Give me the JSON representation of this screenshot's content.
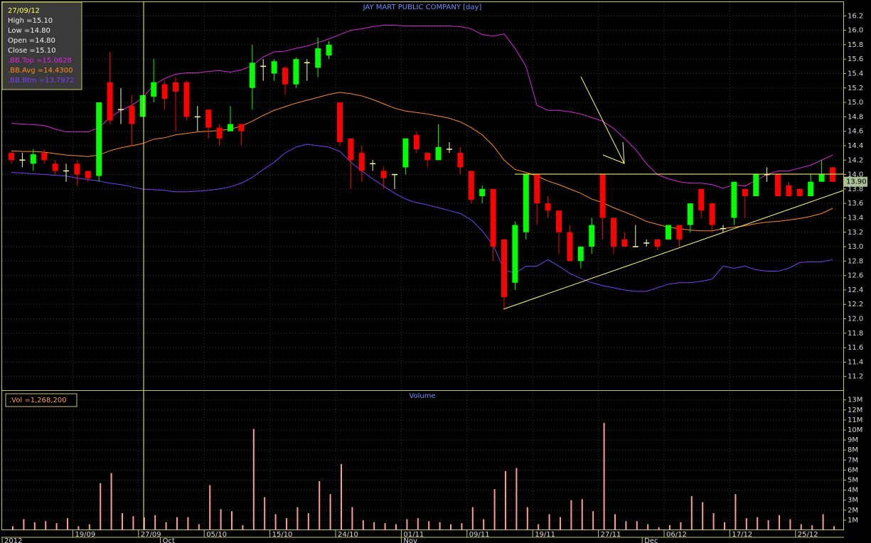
{
  "chart_data": [
    {
      "type": "candlestick",
      "title": "JAY MART PUBLIC COMPANY [day]",
      "open": [
        14.3,
        14.2,
        14.15,
        14.3,
        14.15,
        14.05,
        14.15,
        14.05,
        13.98,
        15.28,
        14.9,
        14.95,
        14.8,
        15.08,
        15.25,
        15.28,
        15.28,
        14.8,
        14.9,
        14.65,
        14.6,
        14.7,
        15.2,
        15.5,
        15.4,
        15.48,
        15.25,
        15.55,
        15.48,
        15.65,
        15.0,
        14.5,
        14.3,
        14.15,
        14.05,
        14.0,
        14.1,
        14.55,
        14.3,
        14.2,
        14.35,
        14.3,
        14.05,
        13.7,
        13.8,
        13.1,
        12.5,
        13.2,
        14.0,
        13.6,
        13.5,
        13.2,
        12.8,
        13.0,
        14.0,
        13.4,
        13.1,
        13.0,
        13.05,
        13.1,
        13.1,
        13.3,
        13.3,
        13.8,
        13.6,
        13.25,
        13.4,
        13.8,
        13.7,
        14.0,
        14.0,
        13.85,
        13.8,
        13.7,
        13.9,
        14.1
      ],
      "high": [
        14.32,
        14.3,
        14.35,
        14.35,
        14.2,
        14.15,
        14.2,
        14.05,
        15.0,
        15.7,
        15.2,
        15.1,
        15.1,
        15.6,
        15.3,
        15.35,
        15.3,
        14.95,
        14.9,
        14.7,
        14.95,
        14.7,
        15.8,
        15.6,
        15.6,
        15.5,
        15.62,
        15.6,
        15.9,
        15.85,
        15.0,
        14.5,
        14.4,
        14.2,
        14.1,
        14.0,
        14.5,
        14.6,
        14.3,
        14.7,
        14.45,
        14.38,
        14.05,
        13.85,
        13.8,
        13.1,
        13.35,
        14.0,
        14.0,
        13.7,
        13.5,
        13.3,
        13.0,
        13.4,
        14.0,
        13.4,
        13.2,
        13.3,
        13.1,
        13.1,
        13.3,
        13.3,
        13.6,
        13.8,
        13.6,
        13.3,
        13.9,
        13.8,
        14.0,
        14.1,
        14.0,
        13.9,
        13.8,
        14.0,
        14.2,
        14.1
      ],
      "low": [
        14.15,
        14.1,
        14.05,
        14.15,
        14.0,
        13.9,
        13.85,
        13.9,
        13.9,
        14.7,
        14.7,
        14.4,
        14.8,
        15.0,
        14.9,
        14.6,
        14.75,
        14.6,
        14.5,
        14.4,
        14.6,
        14.4,
        14.9,
        15.3,
        15.3,
        15.1,
        15.2,
        15.3,
        15.35,
        15.6,
        14.4,
        13.8,
        13.9,
        14.05,
        13.8,
        13.8,
        14.0,
        14.3,
        14.1,
        14.2,
        14.3,
        14.0,
        13.6,
        13.6,
        12.8,
        12.15,
        12.4,
        13.1,
        13.3,
        13.4,
        12.9,
        12.8,
        12.7,
        12.9,
        13.1,
        12.9,
        13.0,
        13.0,
        13.0,
        12.95,
        13.1,
        13.0,
        13.2,
        13.4,
        13.2,
        13.2,
        13.3,
        13.4,
        13.7,
        13.9,
        13.7,
        13.7,
        13.7,
        13.7,
        13.9,
        13.9
      ],
      "close": [
        14.2,
        14.2,
        14.28,
        14.2,
        14.05,
        14.05,
        14.0,
        13.95,
        15.0,
        14.75,
        14.9,
        14.7,
        15.1,
        15.28,
        15.05,
        15.15,
        14.8,
        14.8,
        14.65,
        14.5,
        14.7,
        14.6,
        15.55,
        15.5,
        15.57,
        15.25,
        15.6,
        15.55,
        15.75,
        15.8,
        14.45,
        14.2,
        14.05,
        14.15,
        13.95,
        14.0,
        14.5,
        14.35,
        14.2,
        14.38,
        14.35,
        14.1,
        13.65,
        13.8,
        13.0,
        12.3,
        13.3,
        14.0,
        13.6,
        13.5,
        13.2,
        12.8,
        13.0,
        13.3,
        13.4,
        13.0,
        13.0,
        13.0,
        13.05,
        13.0,
        13.3,
        13.1,
        13.6,
        13.5,
        13.3,
        13.25,
        13.9,
        13.7,
        14.0,
        14.0,
        13.7,
        13.7,
        13.7,
        13.9,
        14.0,
        13.9
      ],
      "last_label": "13.90",
      "up_color": "#00ff00",
      "down_color": "#ff0000",
      "flat_color": "#ffffa0",
      "series": [
        {
          "color": "#e020e0",
          "values": [
            14.71,
            14.7,
            14.69,
            14.68,
            14.63,
            14.59,
            14.59,
            14.59,
            14.65,
            14.79,
            14.89,
            14.96,
            15.0628,
            15.24,
            15.33,
            15.39,
            15.41,
            15.41,
            15.43,
            15.44,
            15.42,
            15.45,
            15.51,
            15.63,
            15.7,
            15.71,
            15.75,
            15.78,
            15.83,
            15.88,
            15.94,
            16.0,
            16.02,
            16.05,
            16.07,
            16.07,
            16.06,
            16.06,
            16.06,
            16.06,
            16.06,
            16.05,
            16.02,
            15.94,
            15.92,
            15.95,
            15.75,
            15.5,
            14.96,
            14.89,
            14.89,
            14.87,
            14.84,
            14.79,
            14.74,
            14.64,
            14.5,
            14.35,
            14.15,
            14.0,
            13.94,
            13.9,
            13.88,
            13.88,
            13.86,
            13.81,
            13.86,
            13.84,
            13.92,
            14.0,
            14.05,
            14.05,
            14.09,
            14.13,
            14.2,
            14.27
          ]
        },
        {
          "color": "#ff8c1a",
          "values": [
            14.33,
            14.32,
            14.32,
            14.31,
            14.29,
            14.27,
            14.26,
            14.25,
            14.27,
            14.33,
            14.37,
            14.4,
            14.43,
            14.49,
            14.51,
            14.55,
            14.57,
            14.59,
            14.6,
            14.61,
            14.63,
            14.67,
            14.74,
            14.82,
            14.89,
            14.94,
            14.99,
            15.03,
            15.07,
            15.11,
            15.14,
            15.12,
            15.09,
            15.04,
            14.98,
            14.92,
            14.88,
            14.86,
            14.84,
            14.81,
            14.78,
            14.73,
            14.65,
            14.55,
            14.4,
            14.2,
            14.07,
            14.03,
            13.98,
            13.91,
            13.86,
            13.8,
            13.74,
            13.66,
            13.61,
            13.54,
            13.48,
            13.42,
            13.35,
            13.31,
            13.27,
            13.25,
            13.23,
            13.22,
            13.22,
            13.25,
            13.27,
            13.29,
            13.32,
            13.34,
            13.35,
            13.37,
            13.39,
            13.42,
            13.46,
            13.53
          ]
        },
        {
          "color": "#7a3cff",
          "values": [
            14.03,
            14.02,
            14.01,
            14.0,
            13.99,
            13.98,
            13.95,
            13.93,
            13.91,
            13.88,
            13.86,
            13.83,
            13.7972,
            13.79,
            13.78,
            13.76,
            13.76,
            13.77,
            13.78,
            13.8,
            13.83,
            13.88,
            13.96,
            14.07,
            14.17,
            14.3,
            14.38,
            14.42,
            14.4,
            14.38,
            14.32,
            14.17,
            14.05,
            13.94,
            13.84,
            13.74,
            13.66,
            13.61,
            13.58,
            13.54,
            13.5,
            13.46,
            13.37,
            13.22,
            13.02,
            12.68,
            12.63,
            12.73,
            12.73,
            12.82,
            12.73,
            12.63,
            12.56,
            12.5,
            12.46,
            12.43,
            12.4,
            12.38,
            12.38,
            12.43,
            12.48,
            12.5,
            12.5,
            12.52,
            12.55,
            12.73,
            12.7,
            12.73,
            12.68,
            12.66,
            12.66,
            12.7,
            12.78,
            12.79,
            12.79,
            12.82
          ]
        }
      ],
      "ylim": [
        11.02,
        16.39
      ],
      "yticks": [
        11.2,
        11.4,
        11.6,
        11.8,
        {
          "value": 12,
          "label": "12.0"
        },
        12.2,
        12.4,
        12.6,
        12.8,
        {
          "value": 13,
          "label": "13.0"
        },
        13.2,
        13.4,
        13.6,
        13.8,
        {
          "value": 14,
          "label": "14.0"
        },
        14.2,
        14.4,
        14.6,
        14.8,
        {
          "value": 15,
          "label": "15.0"
        },
        15.2,
        15.4,
        15.6,
        15.8,
        {
          "value": 16,
          "label": "16.0"
        },
        16.2
      ],
      "grid": true
    },
    {
      "type": "bar",
      "title": "Volume",
      "color": "#ff9a9a",
      "categories": [
        null,
        null,
        null,
        null,
        null,
        null,
        "19/09",
        null,
        null,
        null,
        null,
        null,
        "27/09",
        null,
        null,
        null,
        null,
        null,
        "05/10",
        null,
        null,
        null,
        null,
        null,
        "15/10",
        null,
        null,
        null,
        null,
        null,
        "24/10",
        null,
        null,
        null,
        null,
        null,
        "01/11",
        null,
        null,
        null,
        null,
        null,
        "09/11",
        null,
        null,
        null,
        null,
        null,
        "19/11",
        null,
        null,
        null,
        null,
        null,
        "27/11",
        null,
        null,
        null,
        null,
        null,
        "06/12",
        null,
        null,
        null,
        null,
        null,
        "17/12",
        null,
        null,
        null,
        null,
        null,
        "25/12",
        null,
        null,
        null
      ],
      "months": [
        "2012",
        null,
        null,
        null,
        null,
        null,
        null,
        null,
        null,
        null,
        null,
        null,
        null,
        null,
        "Oct",
        null,
        null,
        null,
        null,
        null,
        null,
        null,
        null,
        null,
        null,
        null,
        null,
        null,
        null,
        null,
        null,
        null,
        null,
        null,
        null,
        null,
        "Nov",
        null,
        null,
        null,
        null,
        null,
        null,
        null,
        null,
        null,
        null,
        null,
        null,
        null,
        null,
        null,
        null,
        null,
        null,
        null,
        null,
        null,
        "Dec",
        null,
        null,
        null,
        null,
        null,
        null,
        null,
        null,
        null,
        null,
        null,
        null,
        null,
        null,
        null,
        null,
        null
      ],
      "values": [
        400000,
        1100000,
        800000,
        900000,
        700000,
        1200000,
        400000,
        600000,
        4700000,
        5700000,
        1700000,
        1400000,
        1268200,
        1500000,
        800000,
        1300000,
        1300000,
        600000,
        4500000,
        2100000,
        1900000,
        500000,
        10100000,
        3300000,
        1600000,
        1200000,
        2300000,
        1700000,
        4900000,
        3600000,
        6600000,
        2300000,
        1000000,
        800000,
        700000,
        600000,
        1100000,
        1200000,
        900000,
        800000,
        600000,
        700000,
        2300000,
        1100000,
        4100000,
        5900000,
        6200000,
        2300000,
        600000,
        1600000,
        1300000,
        3000000,
        3100000,
        1900000,
        10700000,
        1600000,
        900000,
        900000,
        600000,
        300000,
        500000,
        800000,
        3400000,
        2800000,
        1700000,
        800000,
        3600000,
        1200000,
        1300000,
        1000000,
        1500000,
        1100000,
        600000,
        500000,
        1600000,
        400000
      ],
      "ylim": [
        0,
        13900000
      ],
      "yticks": [
        {
          "value": 1000000,
          "label": "1M"
        },
        {
          "value": 2000000,
          "label": "2M"
        },
        {
          "value": 3000000,
          "label": "3M"
        },
        {
          "value": 4000000,
          "label": "4M"
        },
        {
          "value": 5000000,
          "label": "5M"
        },
        {
          "value": 6000000,
          "label": "6M"
        },
        {
          "value": 7000000,
          "label": "7M"
        },
        {
          "value": 8000000,
          "label": "8M"
        },
        {
          "value": 9000000,
          "label": "9M"
        },
        {
          "value": 10000000,
          "label": "10M"
        },
        {
          "value": 11000000,
          "label": "11M"
        },
        {
          "value": 12000000,
          "label": "12M"
        },
        {
          "value": 13000000,
          "label": "13M"
        }
      ],
      "grid": true
    }
  ],
  "info": {
    "date": "27/09/12",
    "lines": [
      "High =15.10",
      "Low  =14.80",
      "Open  =14.80",
      "Close  =15.10",
      ".BB.Top  =15.0628",
      ".BB.Avg  =14.4300",
      ".BB.Btm  =13.7972"
    ],
    "volume": ".Vol  =1,268,200"
  }
}
